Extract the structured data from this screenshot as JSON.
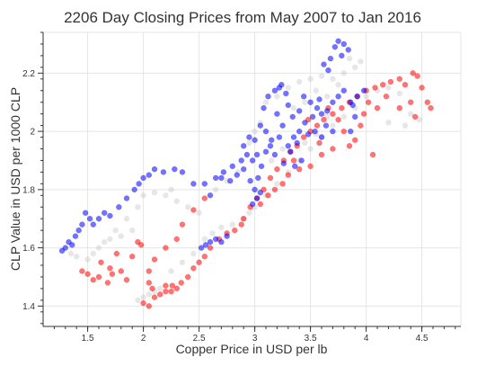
{
  "chart_data": {
    "type": "scatter",
    "title": "2206 Day Closing Prices from May 2007 to Jan 2016",
    "xlabel": "Copper Price in USD per lb",
    "ylabel": "CLP Value in USD per 1000 CLP",
    "xlim": [
      1.1,
      4.85
    ],
    "ylim": [
      1.33,
      2.34
    ],
    "xticks": [
      {
        "value": 1.5,
        "label": "1.5"
      },
      {
        "value": 2,
        "label": "2"
      },
      {
        "value": 2.5,
        "label": "2.5"
      },
      {
        "value": 3,
        "label": "3"
      },
      {
        "value": 3.5,
        "label": "3.5"
      },
      {
        "value": 4,
        "label": "4"
      },
      {
        "value": 4.5,
        "label": "4.5"
      }
    ],
    "yticks": [
      {
        "value": 1.4,
        "label": "1.4"
      },
      {
        "value": 1.6,
        "label": "1.6"
      },
      {
        "value": 1.8,
        "label": "1.8"
      },
      {
        "value": 2.0,
        "label": "2"
      },
      {
        "value": 2.2,
        "label": "2.2"
      }
    ],
    "grid": true,
    "legend": "none",
    "colors": {
      "blue": "#0000ff",
      "red": "#ff0000",
      "gray": "#bbbbbb",
      "frame": "#e5e5e5",
      "grid": "#e5e5e5",
      "text": "#333333"
    },
    "series": [
      {
        "color": "#0000ff",
        "values": [
          [
            1.27,
            1.59
          ],
          [
            1.3,
            1.6
          ],
          [
            1.33,
            1.62
          ],
          [
            1.36,
            1.61
          ],
          [
            1.39,
            1.64
          ],
          [
            1.42,
            1.66
          ],
          [
            1.45,
            1.68
          ],
          [
            1.48,
            1.72
          ],
          [
            1.52,
            1.7
          ],
          [
            1.55,
            1.68
          ],
          [
            1.6,
            1.7
          ],
          [
            1.65,
            1.72
          ],
          [
            1.7,
            1.71
          ],
          [
            1.78,
            1.74
          ],
          [
            1.85,
            1.77
          ],
          [
            1.92,
            1.8
          ],
          [
            1.96,
            1.82
          ],
          [
            2.0,
            1.84
          ],
          [
            2.05,
            1.85
          ],
          [
            2.1,
            1.87
          ],
          [
            2.18,
            1.86
          ],
          [
            2.28,
            1.87
          ],
          [
            2.35,
            1.86
          ],
          [
            2.45,
            1.82
          ],
          [
            2.55,
            1.82
          ],
          [
            2.6,
            1.78
          ],
          [
            2.65,
            1.84
          ],
          [
            2.72,
            1.86
          ],
          [
            2.78,
            1.83
          ],
          [
            2.84,
            1.85
          ],
          [
            2.9,
            1.87
          ],
          [
            2.96,
            1.83
          ],
          [
            3.0,
            1.8
          ],
          [
            3.03,
            1.84
          ],
          [
            3.06,
            1.88
          ],
          [
            3.1,
            1.93
          ],
          [
            3.14,
            1.95
          ],
          [
            3.18,
            1.92
          ],
          [
            3.22,
            1.98
          ],
          [
            3.25,
            2.02
          ],
          [
            3.3,
            1.95
          ],
          [
            3.35,
            1.98
          ],
          [
            3.4,
            2.0
          ],
          [
            3.45,
            2.03
          ],
          [
            3.48,
            1.99
          ],
          [
            3.52,
            2.05
          ],
          [
            3.56,
            2.08
          ],
          [
            3.6,
            2.06
          ],
          [
            3.65,
            2.07
          ],
          [
            3.7,
            2.1
          ],
          [
            3.75,
            2.12
          ],
          [
            3.8,
            2.14
          ],
          [
            3.86,
            2.1
          ],
          [
            3.92,
            2.12
          ],
          [
            3.98,
            2.14
          ],
          [
            3.08,
            2.08
          ],
          [
            3.12,
            2.12
          ],
          [
            3.18,
            2.14
          ],
          [
            3.22,
            2.15
          ],
          [
            3.28,
            2.13
          ],
          [
            3.05,
            2.02
          ],
          [
            2.95,
            1.98
          ],
          [
            2.9,
            1.95
          ],
          [
            2.88,
            1.9
          ],
          [
            2.98,
            1.9
          ],
          [
            3.02,
            1.92
          ],
          [
            3.32,
            1.93
          ],
          [
            3.38,
            1.96
          ],
          [
            3.42,
            1.9
          ],
          [
            3.36,
            1.88
          ],
          [
            3.26,
            1.89
          ],
          [
            3.66,
            2.21
          ],
          [
            3.68,
            2.25
          ],
          [
            3.62,
            2.23
          ],
          [
            3.72,
            2.29
          ],
          [
            3.75,
            2.31
          ],
          [
            3.8,
            2.3
          ],
          [
            3.84,
            2.28
          ],
          [
            3.78,
            2.26
          ],
          [
            2.52,
            1.6
          ],
          [
            2.56,
            1.61
          ],
          [
            2.6,
            1.62
          ],
          [
            2.65,
            1.63
          ],
          [
            2.7,
            1.62
          ],
          [
            2.75,
            1.64
          ],
          [
            3.02,
            1.77
          ],
          [
            3.05,
            1.79
          ],
          [
            2.98,
            1.75
          ],
          [
            3.44,
            2.12
          ],
          [
            3.5,
            2.1
          ],
          [
            3.58,
            2.11
          ],
          [
            3.64,
            2.02
          ],
          [
            3.7,
            2.0
          ],
          [
            3.15,
            1.97
          ],
          [
            3.2,
            2.06
          ],
          [
            3.1,
            2.0
          ],
          [
            3.34,
            2.05
          ],
          [
            3.4,
            2.07
          ],
          [
            3.54,
            2.0
          ],
          [
            3.6,
            1.98
          ],
          [
            2.93,
            1.92
          ],
          [
            3.86,
            2.0
          ],
          [
            3.9,
            2.05
          ],
          [
            3.88,
            2.09
          ],
          [
            2.8,
            1.88
          ],
          [
            2.7,
            1.84
          ],
          [
            3.24,
            2.16
          ],
          [
            3.3,
            2.09
          ],
          [
            3.0,
            1.97
          ]
        ]
      },
      {
        "color": "#ff0000",
        "values": [
          [
            1.45,
            1.52
          ],
          [
            1.5,
            1.51
          ],
          [
            1.55,
            1.49
          ],
          [
            1.6,
            1.5
          ],
          [
            1.68,
            1.48
          ],
          [
            1.72,
            1.51
          ],
          [
            1.76,
            1.58
          ],
          [
            1.8,
            1.52
          ],
          [
            1.85,
            1.49
          ],
          [
            1.9,
            1.57
          ],
          [
            1.7,
            1.53
          ],
          [
            1.62,
            1.55
          ],
          [
            1.95,
            1.62
          ],
          [
            2.05,
            1.48
          ],
          [
            2.08,
            1.46
          ],
          [
            1.98,
            1.61
          ],
          [
            2.0,
            1.41
          ],
          [
            2.05,
            1.4
          ],
          [
            2.1,
            1.43
          ],
          [
            2.15,
            1.44
          ],
          [
            2.2,
            1.45
          ],
          [
            2.26,
            1.47
          ],
          [
            2.3,
            1.46
          ],
          [
            2.34,
            1.48
          ],
          [
            2.4,
            1.5
          ],
          [
            2.45,
            1.53
          ],
          [
            2.5,
            1.55
          ],
          [
            2.55,
            1.57
          ],
          [
            2.6,
            1.6
          ],
          [
            2.68,
            1.63
          ],
          [
            2.75,
            1.65
          ],
          [
            2.82,
            1.66
          ],
          [
            2.9,
            1.7
          ],
          [
            2.96,
            1.74
          ],
          [
            3.02,
            1.77
          ],
          [
            3.08,
            1.8
          ],
          [
            3.14,
            1.84
          ],
          [
            3.2,
            1.87
          ],
          [
            3.26,
            1.9
          ],
          [
            3.32,
            1.93
          ],
          [
            3.38,
            1.95
          ],
          [
            3.44,
            1.98
          ],
          [
            3.5,
            2.0
          ],
          [
            3.56,
            2.02
          ],
          [
            3.62,
            2.04
          ],
          [
            3.7,
            2.06
          ],
          [
            3.78,
            2.08
          ],
          [
            3.85,
            2.1
          ],
          [
            3.92,
            2.12
          ],
          [
            4.0,
            2.14
          ],
          [
            4.08,
            2.15
          ],
          [
            4.15,
            2.16
          ],
          [
            4.22,
            2.17
          ],
          [
            4.3,
            2.18
          ],
          [
            4.35,
            2.16
          ],
          [
            4.42,
            2.2
          ],
          [
            4.46,
            2.19
          ],
          [
            4.5,
            2.15
          ],
          [
            4.55,
            2.1
          ],
          [
            4.58,
            2.08
          ],
          [
            4.4,
            2.1
          ],
          [
            4.44,
            2.05
          ],
          [
            4.3,
            2.08
          ],
          [
            4.06,
            1.92
          ],
          [
            3.9,
            1.97
          ],
          [
            3.95,
            2.02
          ],
          [
            3.85,
            1.95
          ],
          [
            3.7,
            1.94
          ],
          [
            3.6,
            1.92
          ],
          [
            3.5,
            1.88
          ],
          [
            3.4,
            1.87
          ],
          [
            3.3,
            1.85
          ],
          [
            3.25,
            1.82
          ],
          [
            3.18,
            1.8
          ],
          [
            3.12,
            1.78
          ],
          [
            3.05,
            1.75
          ],
          [
            2.2,
            1.6
          ],
          [
            2.3,
            1.63
          ],
          [
            2.1,
            1.56
          ],
          [
            2.05,
            1.52
          ],
          [
            2.35,
            1.68
          ],
          [
            2.45,
            1.73
          ],
          [
            2.55,
            1.77
          ],
          [
            2.2,
            1.47
          ],
          [
            2.25,
            1.45
          ],
          [
            4.18,
            2.12
          ],
          [
            4.1,
            2.08
          ],
          [
            4.02,
            2.1
          ],
          [
            3.98,
            2.06
          ],
          [
            3.8,
            2.0
          ],
          [
            3.75,
            2.04
          ],
          [
            3.66,
            2.08
          ],
          [
            3.48,
            2.04
          ],
          [
            3.58,
            1.96
          ],
          [
            3.35,
            1.9
          ],
          [
            2.88,
            1.68
          ]
        ]
      },
      {
        "color": "#bbbbbb",
        "values": [
          [
            1.35,
            1.58
          ],
          [
            1.4,
            1.57
          ],
          [
            1.5,
            1.56
          ],
          [
            1.55,
            1.58
          ],
          [
            1.6,
            1.6
          ],
          [
            1.65,
            1.62
          ],
          [
            1.75,
            1.66
          ],
          [
            1.85,
            1.7
          ],
          [
            1.95,
            1.74
          ],
          [
            2.0,
            1.78
          ],
          [
            2.1,
            1.79
          ],
          [
            2.2,
            1.78
          ],
          [
            2.25,
            1.8
          ],
          [
            2.3,
            1.76
          ],
          [
            2.4,
            1.74
          ],
          [
            2.5,
            1.72
          ],
          [
            2.55,
            1.63
          ],
          [
            2.62,
            1.65
          ],
          [
            2.7,
            1.67
          ],
          [
            2.8,
            1.68
          ],
          [
            2.9,
            1.7
          ],
          [
            2.95,
            1.72
          ],
          [
            3.0,
            1.74
          ],
          [
            3.1,
            1.78
          ],
          [
            3.2,
            1.82
          ],
          [
            3.3,
            1.86
          ],
          [
            3.4,
            1.9
          ],
          [
            3.5,
            1.94
          ],
          [
            3.6,
            1.98
          ],
          [
            3.7,
            2.02
          ],
          [
            3.8,
            2.05
          ],
          [
            3.9,
            2.08
          ],
          [
            4.0,
            2.12
          ],
          [
            4.1,
            2.14
          ],
          [
            4.2,
            2.15
          ],
          [
            4.3,
            2.13
          ],
          [
            4.4,
            2.06
          ],
          [
            4.48,
            2.04
          ],
          [
            4.35,
            2.02
          ],
          [
            4.2,
            2.03
          ],
          [
            3.1,
            2.1
          ],
          [
            3.2,
            2.12
          ],
          [
            3.3,
            2.15
          ],
          [
            3.4,
            2.17
          ],
          [
            3.5,
            2.18
          ],
          [
            3.6,
            2.19
          ],
          [
            3.7,
            2.18
          ],
          [
            3.8,
            2.2
          ],
          [
            3.9,
            2.22
          ],
          [
            3.95,
            2.24
          ],
          [
            3.85,
            2.25
          ],
          [
            2.0,
            1.43
          ],
          [
            2.05,
            1.44
          ],
          [
            1.95,
            1.42
          ],
          [
            2.1,
            1.45
          ],
          [
            2.15,
            1.46
          ],
          [
            1.9,
            1.66
          ],
          [
            1.8,
            1.64
          ],
          [
            1.7,
            1.63
          ],
          [
            3.0,
            2.0
          ],
          [
            3.05,
            2.03
          ],
          [
            2.95,
            1.96
          ],
          [
            3.35,
            2.08
          ],
          [
            3.45,
            2.1
          ],
          [
            3.55,
            2.14
          ],
          [
            3.65,
            2.12
          ],
          [
            3.75,
            2.16
          ],
          [
            2.65,
            1.8
          ],
          [
            2.75,
            1.83
          ],
          [
            2.85,
            1.86
          ],
          [
            3.15,
            1.9
          ],
          [
            3.25,
            1.94
          ],
          [
            3.45,
            1.96
          ],
          [
            3.55,
            1.99
          ],
          [
            3.65,
            2.05
          ],
          [
            2.45,
            1.58
          ],
          [
            2.35,
            1.55
          ],
          [
            2.25,
            1.52
          ]
        ]
      }
    ]
  }
}
